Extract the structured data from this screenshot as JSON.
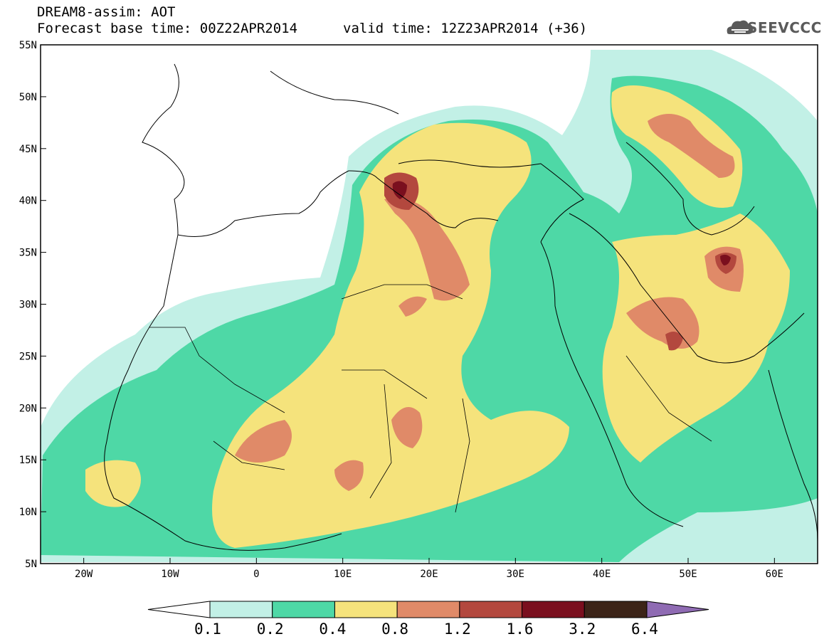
{
  "header": {
    "model_line": "DREAM8-assim: AOT",
    "base_time_line": "Forecast base time: 00Z22APR2014",
    "valid_time_line": "valid time: 12Z23APR2014 (+36)",
    "logo_text": "SEEVCCC"
  },
  "map": {
    "lon_range": [
      -25,
      65
    ],
    "lat_range": [
      5,
      55
    ],
    "lat_ticks": [
      "55N",
      "50N",
      "45N",
      "40N",
      "35N",
      "30N",
      "25N",
      "20N",
      "15N",
      "10N",
      "5N"
    ],
    "lon_ticks": [
      "20W",
      "10W",
      "0",
      "10E",
      "20E",
      "30E",
      "40E",
      "50E",
      "60E"
    ],
    "variable": "AOT"
  },
  "colorbar": {
    "levels": [
      "0.1",
      "0.2",
      "0.4",
      "0.8",
      "1.2",
      "1.6",
      "3.2",
      "6.4"
    ],
    "colors": [
      "#ffffff",
      "#c2f0e6",
      "#4ed8a6",
      "#f5e37c",
      "#e08a68",
      "#b3483e",
      "#7a0f1e",
      "#3c2418",
      "#8f6bb3"
    ]
  }
}
